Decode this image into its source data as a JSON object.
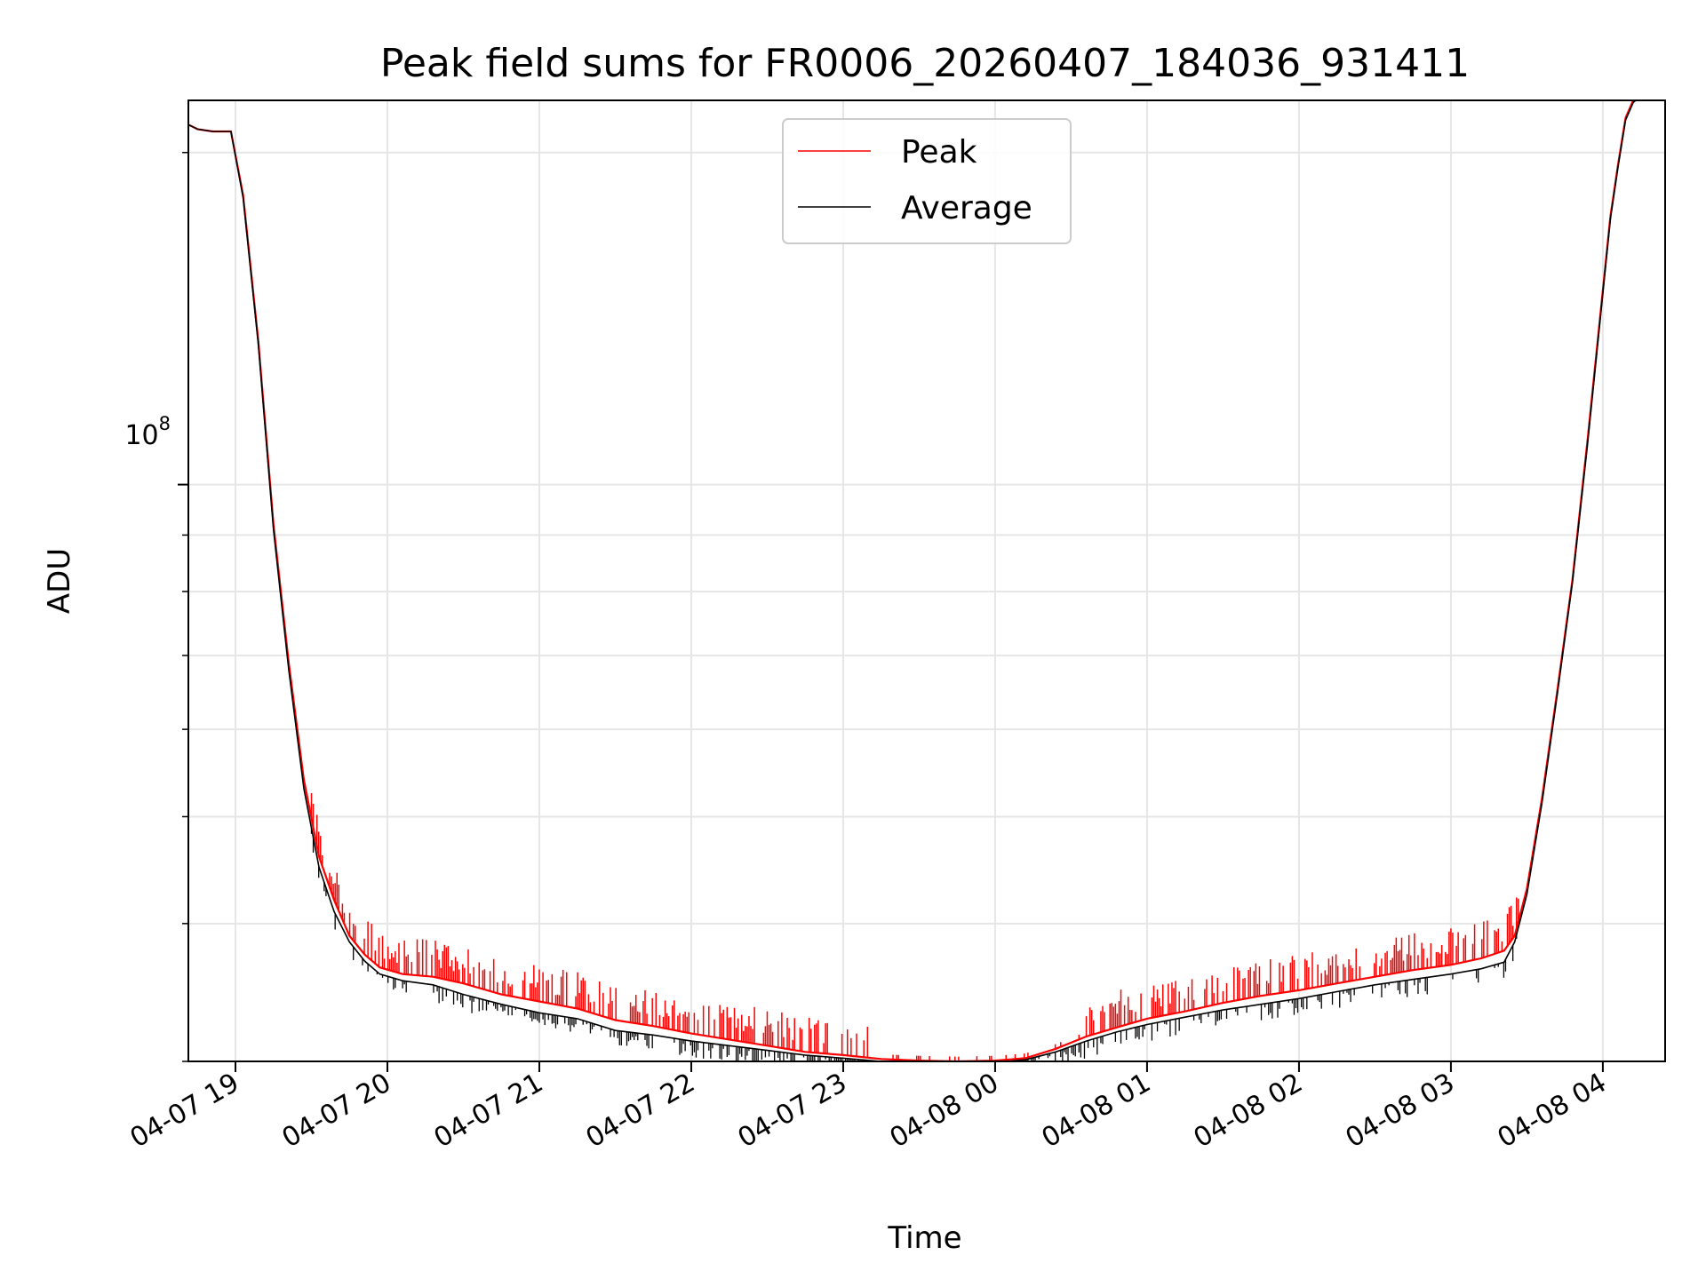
{
  "chart_data": {
    "type": "line",
    "title": "Peak field sums for FR0006_20260407_184036_931411",
    "xlabel": "Time",
    "ylabel": "ADU",
    "yscale": "log",
    "ylim": [
      30000000,
      223000000
    ],
    "xlim_hours": [
      18.69,
      28.41
    ],
    "x_tick_labels": [
      "04-07 19",
      "04-07 20",
      "04-07 21",
      "04-07 22",
      "04-07 23",
      "04-08 00",
      "04-08 01",
      "04-08 02",
      "04-08 03",
      "04-08 04"
    ],
    "x_tick_hours": [
      19,
      20,
      21,
      22,
      23,
      24,
      25,
      26,
      27,
      28
    ],
    "y_major_tick_label": "10",
    "y_major_tick_exponent": "8",
    "y_major_tick_value": 100000000,
    "legend_position": "upper center",
    "series": [
      {
        "name": "Peak",
        "color": "#ff0000",
        "x_hours": [
          18.69,
          18.75,
          18.85,
          18.97,
          19.05,
          19.15,
          19.25,
          19.35,
          19.45,
          19.55,
          19.65,
          19.75,
          19.85,
          19.95,
          20.1,
          20.3,
          20.5,
          20.75,
          21.0,
          21.25,
          21.5,
          21.75,
          22.0,
          22.25,
          22.5,
          22.75,
          23.0,
          23.25,
          23.5,
          23.75,
          24.0,
          24.2,
          24.4,
          24.6,
          24.8,
          25.0,
          25.25,
          25.5,
          25.75,
          26.0,
          26.25,
          26.5,
          26.75,
          27.0,
          27.2,
          27.35,
          27.42,
          27.5,
          27.6,
          27.7,
          27.8,
          27.9,
          28.0,
          28.05,
          28.1,
          28.15,
          28.2,
          28.25,
          28.41
        ],
        "values": [
          212000000,
          210000000,
          209000000,
          209000000,
          183000000,
          135000000,
          92000000,
          69000000,
          54000000,
          46000000,
          42000000,
          39000000,
          37500000,
          36500000,
          36000000,
          35800000,
          35300000,
          34500000,
          34000000,
          33500000,
          32700000,
          32300000,
          31800000,
          31400000,
          31000000,
          30600000,
          30400000,
          30150000,
          30050000,
          30000000,
          30050000,
          30200000,
          30800000,
          31600000,
          32200000,
          32800000,
          33300000,
          33900000,
          34400000,
          34800000,
          35300000,
          35800000,
          36300000,
          36700000,
          37200000,
          37800000,
          39000000,
          43000000,
          52000000,
          65000000,
          82000000,
          110000000,
          150000000,
          175000000,
          195000000,
          215000000,
          223000000,
          225000000,
          225000000
        ]
      },
      {
        "name": "Average",
        "color": "#000000",
        "x_hours": [
          18.69,
          18.75,
          18.85,
          18.97,
          19.05,
          19.15,
          19.25,
          19.35,
          19.45,
          19.55,
          19.65,
          19.75,
          19.85,
          19.95,
          20.1,
          20.3,
          20.5,
          20.75,
          21.0,
          21.25,
          21.5,
          21.75,
          22.0,
          22.25,
          22.5,
          22.75,
          23.0,
          23.25,
          23.5,
          23.75,
          24.0,
          24.2,
          24.4,
          24.6,
          24.8,
          25.0,
          25.25,
          25.5,
          25.75,
          26.0,
          26.25,
          26.5,
          26.75,
          27.0,
          27.2,
          27.35,
          27.42,
          27.5,
          27.6,
          27.7,
          27.8,
          27.9,
          28.0,
          28.05,
          28.1,
          28.15,
          28.2,
          28.25,
          28.41
        ],
        "values": [
          212000000,
          210000000,
          209000000,
          209000000,
          182000000,
          134000000,
          91000000,
          68000000,
          53000000,
          45000000,
          41000000,
          38500000,
          37000000,
          36000000,
          35500000,
          35200000,
          34500000,
          33800000,
          33200000,
          32800000,
          32000000,
          31700000,
          31300000,
          31000000,
          30700000,
          30400000,
          30200000,
          30000000,
          29950000,
          29900000,
          29950000,
          30100000,
          30600000,
          31300000,
          31900000,
          32400000,
          32900000,
          33400000,
          33800000,
          34200000,
          34700000,
          35200000,
          35600000,
          36000000,
          36400000,
          36900000,
          38500000,
          42500000,
          51500000,
          64500000,
          81500000,
          109000000,
          149000000,
          174000000,
          194000000,
          214000000,
          222000000,
          225000000,
          225000000
        ]
      }
    ]
  }
}
